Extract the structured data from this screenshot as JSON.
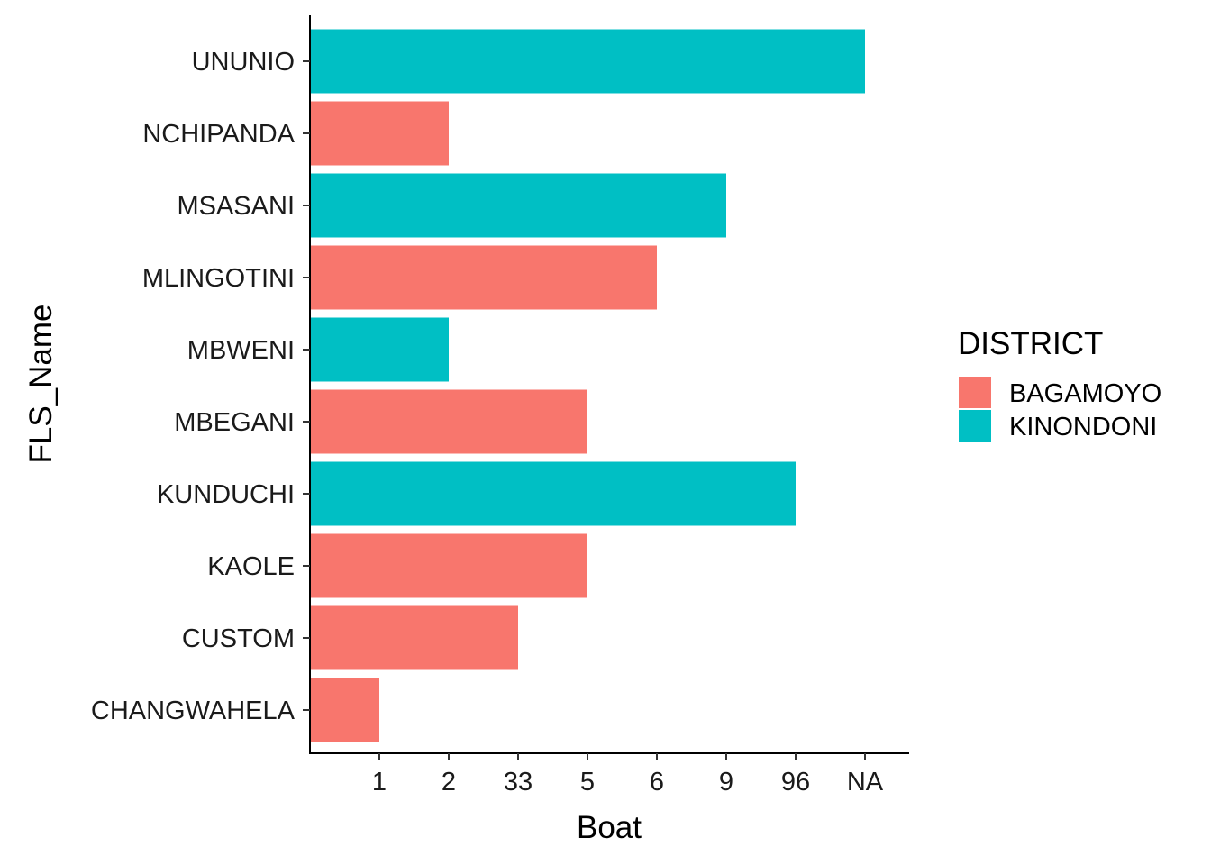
{
  "chart_data": {
    "type": "bar",
    "orientation": "horizontal",
    "xlabel": "Boat",
    "ylabel": "FLS_Name",
    "x_categories": [
      "1",
      "2",
      "33",
      "5",
      "6",
      "9",
      "96",
      "NA"
    ],
    "categories": [
      "CHANGWAHELA",
      "CUSTOM",
      "KAOLE",
      "KUNDUCHI",
      "MBEGANI",
      "MBWENI",
      "MLINGOTINI",
      "MSASANI",
      "NCHIPANDA",
      "UNUNIO"
    ],
    "bars": [
      {
        "category": "CHANGWAHELA",
        "value": "1",
        "group": "BAGAMOYO"
      },
      {
        "category": "CUSTOM",
        "value": "33",
        "group": "BAGAMOYO"
      },
      {
        "category": "KAOLE",
        "value": "5",
        "group": "BAGAMOYO"
      },
      {
        "category": "KUNDUCHI",
        "value": "96",
        "group": "KINONDONI"
      },
      {
        "category": "MBEGANI",
        "value": "5",
        "group": "BAGAMOYO"
      },
      {
        "category": "MBWENI",
        "value": "2",
        "group": "KINONDONI"
      },
      {
        "category": "MLINGOTINI",
        "value": "6",
        "group": "BAGAMOYO"
      },
      {
        "category": "MSASANI",
        "value": "9",
        "group": "KINONDONI"
      },
      {
        "category": "NCHIPANDA",
        "value": "2",
        "group": "BAGAMOYO"
      },
      {
        "category": "UNUNIO",
        "value": "NA",
        "group": "KINONDONI"
      }
    ],
    "legend": {
      "title": "DISTRICT",
      "position": "right",
      "items": [
        {
          "label": "BAGAMOYO",
          "color": "#F8766D"
        },
        {
          "label": "KINONDONI",
          "color": "#00BFC4"
        }
      ]
    },
    "grid": false
  }
}
